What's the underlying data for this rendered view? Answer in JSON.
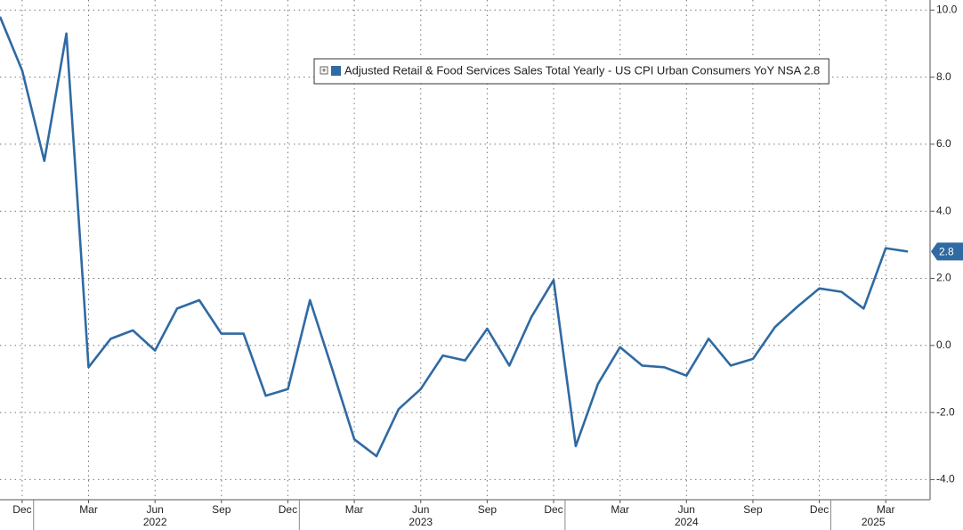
{
  "chart_data": {
    "type": "line",
    "x": [
      "2021-11",
      "2021-12",
      "2022-01",
      "2022-02",
      "2022-03",
      "2022-04",
      "2022-05",
      "2022-06",
      "2022-07",
      "2022-08",
      "2022-09",
      "2022-10",
      "2022-11",
      "2022-12",
      "2023-01",
      "2023-02",
      "2023-03",
      "2023-04",
      "2023-05",
      "2023-06",
      "2023-07",
      "2023-08",
      "2023-09",
      "2023-10",
      "2023-11",
      "2023-12",
      "2024-01",
      "2024-02",
      "2024-03",
      "2024-04",
      "2024-05",
      "2024-06",
      "2024-07",
      "2024-08",
      "2024-09",
      "2024-10",
      "2024-11",
      "2024-12",
      "2025-01",
      "2025-02",
      "2025-03",
      "2025-04"
    ],
    "series": [
      {
        "name": "Adjusted Retail & Food Services Sales Total Yearly - US CPI Urban Consumers YoY NSA",
        "color": "#2f6aa3",
        "values": [
          9.8,
          8.2,
          5.5,
          9.3,
          -0.65,
          0.2,
          0.45,
          -0.15,
          1.1,
          1.35,
          0.35,
          0.35,
          -1.5,
          -1.3,
          1.35,
          -0.7,
          -2.8,
          -3.3,
          -1.9,
          -1.3,
          -0.3,
          -0.45,
          0.5,
          -0.6,
          0.85,
          1.95,
          -3.0,
          -1.15,
          -0.05,
          -0.6,
          -0.65,
          -0.9,
          0.2,
          -0.6,
          -0.4,
          0.55,
          1.15,
          1.7,
          1.6,
          1.1,
          2.9,
          2.8
        ]
      }
    ],
    "xlim": [
      "2021-11",
      "2025-05"
    ],
    "xticks": [
      {
        "value": "2021-12",
        "label": "Dec"
      },
      {
        "value": "2022-03",
        "label": "Mar"
      },
      {
        "value": "2022-06",
        "label": "Jun"
      },
      {
        "value": "2022-09",
        "label": "Sep"
      },
      {
        "value": "2022-12",
        "label": "Dec"
      },
      {
        "value": "2023-03",
        "label": "Mar"
      },
      {
        "value": "2023-06",
        "label": "Jun"
      },
      {
        "value": "2023-09",
        "label": "Sep"
      },
      {
        "value": "2023-12",
        "label": "Dec"
      },
      {
        "value": "2024-03",
        "label": "Mar"
      },
      {
        "value": "2024-06",
        "label": "Jun"
      },
      {
        "value": "2024-09",
        "label": "Sep"
      },
      {
        "value": "2024-12",
        "label": "Dec"
      },
      {
        "value": "2025-03",
        "label": "Mar"
      }
    ],
    "year_labels": [
      "2022",
      "2023",
      "2024",
      "2025"
    ],
    "ylim": [
      -4.6,
      10.3
    ],
    "yticks": [
      {
        "value": -4,
        "label": "-4.0"
      },
      {
        "value": -2,
        "label": "-2.0"
      },
      {
        "value": 0,
        "label": "0.0"
      },
      {
        "value": 2,
        "label": "2.0"
      },
      {
        "value": 4,
        "label": "4.0"
      },
      {
        "value": 6,
        "label": "6.0"
      },
      {
        "value": 8,
        "label": "8.0"
      },
      {
        "value": 10,
        "label": "10.0"
      }
    ],
    "grid": true
  }
}
